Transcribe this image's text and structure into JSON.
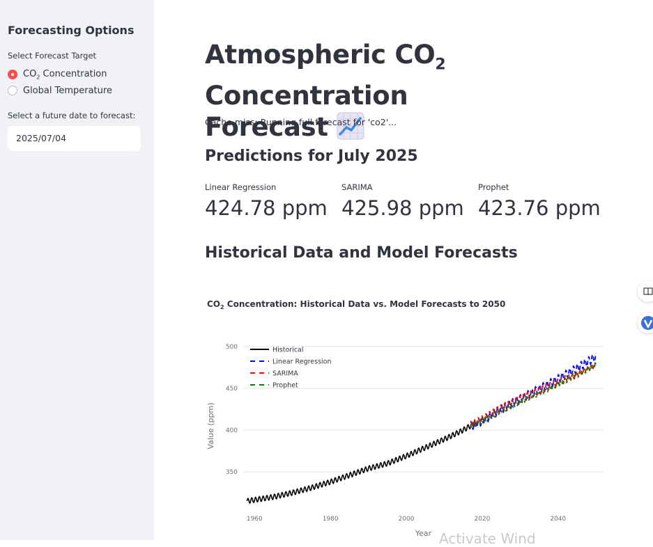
{
  "sidebar": {
    "title": "Forecasting Options",
    "target_label": "Select Forecast Target",
    "options": [
      {
        "pre": "CO",
        "sub": "2",
        "post": " Concentration",
        "selected": true
      },
      {
        "pre": "Global Temperature",
        "sub": "",
        "post": "",
        "selected": false
      }
    ],
    "date_label": "Select a future date to forecast:",
    "date_value": "2025/07/04"
  },
  "main": {
    "title_line1_pre": "Atmospheric CO",
    "title_line1_sub": "2",
    "title_line1_post": " Concentration",
    "title_line2": "Forecast",
    "title_icon": "chart-increasing-emoji",
    "cache_message": "Cache miss: Running full forecast for 'co2'...",
    "predictions_heading": "Predictions for July 2025",
    "metrics": [
      {
        "label": "Linear Regression",
        "value": "424.78 ppm"
      },
      {
        "label": "SARIMA",
        "value": "425.98 ppm"
      },
      {
        "label": "Prophet",
        "value": "423.76 ppm"
      }
    ],
    "historical_heading": "Historical Data and Model Forecasts"
  },
  "side_buttons": [
    "book-icon",
    "vpn-shield-icon"
  ],
  "watermark": "Activate Wind",
  "colors": {
    "accent": "#ff4b4b",
    "sidebar_bg": "#f0f2f6",
    "historical": "#000000",
    "linear": "#0000ff",
    "sarima": "#ff0000",
    "prophet": "#008000"
  },
  "chart_data": {
    "type": "line",
    "title_pre": "CO",
    "title_sub": "2",
    "title_post": " Concentration: Historical Data vs. Model Forecasts to 2050",
    "xlabel": "Year",
    "ylabel": "Value (ppm)",
    "xlim": [
      1957,
      2052
    ],
    "ylim": [
      305,
      505
    ],
    "x_ticks": [
      1960,
      1980,
      2000,
      2020,
      2040
    ],
    "y_ticks": [
      350,
      400,
      450,
      500
    ],
    "grid": true,
    "legend_position": "top-left",
    "series": [
      {
        "name": "Historical",
        "color": "#000000",
        "dash": "solid",
        "x": [
          1958,
          1965,
          1970,
          1975,
          1980,
          1985,
          1990,
          1995,
          2000,
          2005,
          2010,
          2015,
          2018
        ],
        "y": [
          315,
          320,
          325,
          331,
          338,
          346,
          354,
          360,
          369,
          379,
          389,
          400,
          408
        ],
        "seasonal_amplitude": 3
      },
      {
        "name": "Linear Regression",
        "color": "#0000ff",
        "dash": "dashed",
        "x": [
          2017,
          2020,
          2025,
          2030,
          2035,
          2040,
          2045,
          2050
        ],
        "y": [
          405,
          411,
          425,
          437,
          449,
          461,
          474,
          488
        ],
        "seasonal_amplitude": 5
      },
      {
        "name": "SARIMA",
        "color": "#ff0000",
        "dash": "dashed",
        "x": [
          2017,
          2020,
          2025,
          2030,
          2035,
          2040,
          2045,
          2050
        ],
        "y": [
          407,
          413,
          426,
          437,
          447,
          457,
          467,
          478
        ],
        "seasonal_amplitude": 4
      },
      {
        "name": "Prophet",
        "color": "#008000",
        "dash": "dotted",
        "x": [
          2017,
          2020,
          2025,
          2030,
          2035,
          2040,
          2045,
          2050
        ],
        "y": [
          405,
          411,
          423,
          434,
          444,
          455,
          466,
          478
        ],
        "seasonal_amplitude": 3
      }
    ]
  }
}
